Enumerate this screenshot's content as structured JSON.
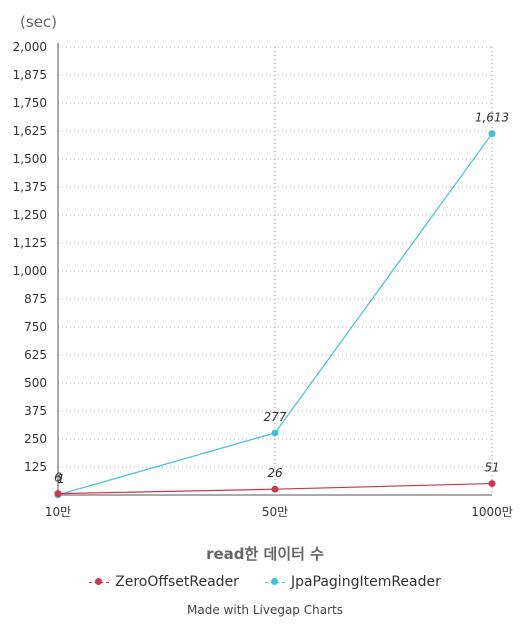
{
  "chart_data": {
    "type": "line",
    "unit_label": "(sec)",
    "xlabel": "read한 데이터 수",
    "categories": [
      "10만",
      "50만",
      "1000만"
    ],
    "y_ticks": [
      "2,000",
      "1,875",
      "1,750",
      "1,625",
      "1,500",
      "1,375",
      "1,250",
      "1,125",
      "1,000",
      "875",
      "750",
      "625",
      "500",
      "375",
      "250",
      "125"
    ],
    "ylim": [
      0,
      2000
    ],
    "grid": true,
    "legend_position": "bottom",
    "series": [
      {
        "name": "ZeroOffsetReader",
        "values": [
          6,
          26,
          51
        ],
        "labels": [
          "6",
          "26",
          "51"
        ],
        "color": "#c8374a"
      },
      {
        "name": "JpaPagingItemReader",
        "values": [
          1,
          277,
          1613
        ],
        "labels": [
          "1",
          "277",
          "1,613"
        ],
        "color": "#3cc3d6"
      }
    ]
  },
  "footer": {
    "credit": "Made with Livegap Charts"
  }
}
